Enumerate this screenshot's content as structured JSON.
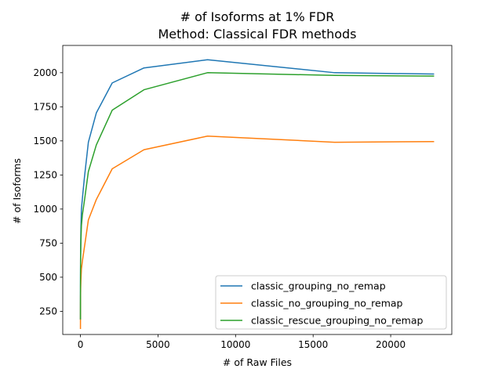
{
  "chart_data": {
    "type": "line",
    "title": "# of Isoforms at 1% FDR",
    "subtitle": "Method: Classical FDR methods",
    "xlabel": "# of Raw Files",
    "ylabel": "# of Isoforms",
    "xlim": [
      -1140,
      23940
    ],
    "ylim": [
      80,
      2200
    ],
    "xticks": [
      0,
      5000,
      10000,
      15000,
      20000
    ],
    "xtick_labels": [
      "0",
      "5000",
      "10000",
      "15000",
      "20000"
    ],
    "yticks": [
      250,
      500,
      750,
      1000,
      1250,
      1500,
      1750,
      2000
    ],
    "ytick_labels": [
      "250",
      "500",
      "750",
      "1000",
      "1250",
      "1500",
      "1750",
      "2000"
    ],
    "grid": false,
    "legend_position": "lower-right",
    "series": [
      {
        "name": "classic_grouping_no_remap",
        "color": "#1f77b4",
        "x": [
          1,
          2,
          4,
          8,
          16,
          32,
          64,
          128,
          256,
          512,
          1024,
          2048,
          4096,
          8192,
          16384,
          22800
        ],
        "y": [
          190,
          330,
          480,
          620,
          730,
          860,
          1000,
          1080,
          1230,
          1490,
          1705,
          1925,
          2035,
          2095,
          2000,
          1990
        ]
      },
      {
        "name": "classic_no_grouping_no_remap",
        "color": "#ff7f0e",
        "x": [
          1,
          2,
          4,
          8,
          16,
          32,
          64,
          128,
          256,
          512,
          1024,
          2048,
          4096,
          8192,
          16384,
          22800
        ],
        "y": [
          120,
          200,
          290,
          360,
          420,
          480,
          560,
          620,
          720,
          920,
          1070,
          1295,
          1435,
          1535,
          1490,
          1495
        ]
      },
      {
        "name": "classic_rescue_grouping_no_remap",
        "color": "#2ca02c",
        "x": [
          1,
          2,
          4,
          8,
          16,
          32,
          64,
          128,
          256,
          512,
          1024,
          2048,
          4096,
          8192,
          16384,
          22800
        ],
        "y": [
          190,
          300,
          430,
          560,
          660,
          770,
          880,
          960,
          1060,
          1275,
          1470,
          1725,
          1875,
          2000,
          1980,
          1975
        ]
      }
    ]
  }
}
